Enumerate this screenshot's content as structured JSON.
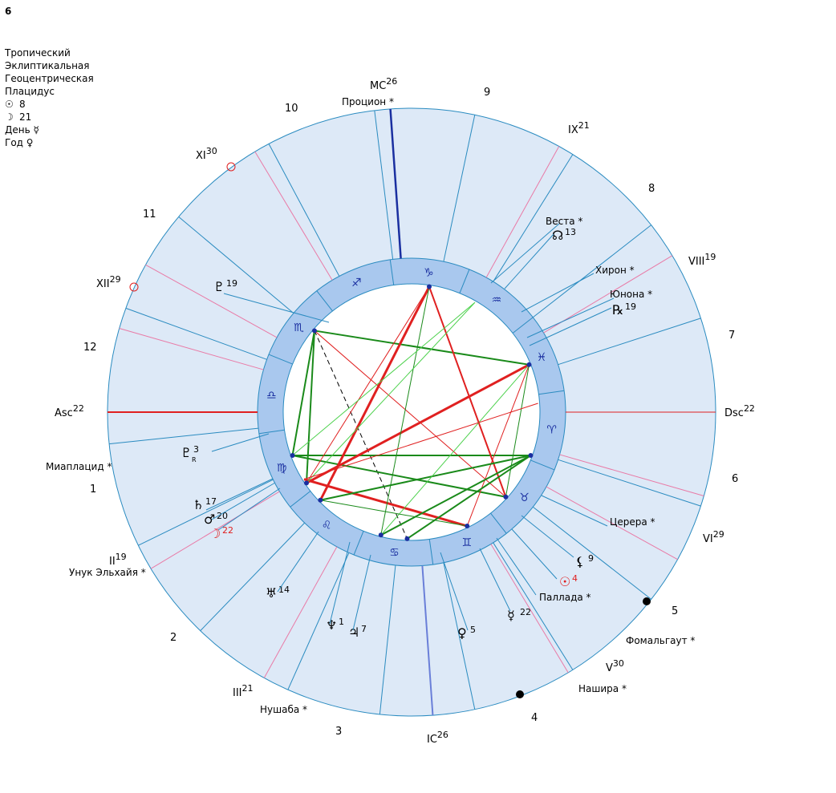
{
  "header": {
    "number": "6",
    "lines": [
      "Тропический",
      "Эклиптикальная",
      "Геоцентрическая",
      "Плацидус"
    ],
    "sun_value": "8",
    "moon_value": "21",
    "day_label": "День ☿",
    "year_label": "Год ♀"
  },
  "colors": {
    "house_fill": "#dde9f7",
    "house_line": "#2a8bc0",
    "zodiac_ring": "#a9c8ee",
    "aspect_red": "#e02020",
    "aspect_green": "#1a8a1a",
    "aspect_light_green": "#4cd14c",
    "axis_red": "#e02020",
    "axis_blue": "#1a2fa0"
  },
  "angles": {
    "asc": {
      "label": "Asc",
      "deg": "22"
    },
    "dsc": {
      "label": "Dsc",
      "deg": "22"
    },
    "mc": {
      "label": "MC",
      "deg": "26"
    },
    "ic": {
      "label": "IC",
      "deg": "26"
    }
  },
  "cusps": [
    {
      "label": "II",
      "deg": "19"
    },
    {
      "label": "III",
      "deg": "21"
    },
    {
      "label": "V",
      "deg": "30"
    },
    {
      "label": "VI",
      "deg": "29"
    },
    {
      "label": "VIII",
      "deg": "19"
    },
    {
      "label": "IX",
      "deg": "21"
    },
    {
      "label": "XI",
      "deg": "30"
    },
    {
      "label": "XII",
      "deg": "29"
    }
  ],
  "house_numbers": [
    "1",
    "2",
    "3",
    "4",
    "5",
    "6",
    "7",
    "8",
    "9",
    "10",
    "11",
    "12"
  ],
  "zodiac_signs": [
    "♈",
    "♉",
    "♊",
    "♋",
    "♌",
    "♍",
    "♎",
    "♏",
    "♐",
    "♑",
    "♒",
    "♓"
  ],
  "planets": [
    {
      "name": "sun",
      "glyph": "☉",
      "deg": "4",
      "color": "#e02020"
    },
    {
      "name": "moon",
      "glyph": "☽",
      "deg": "22",
      "color": "#e02020"
    },
    {
      "name": "mercury",
      "glyph": "☿",
      "deg": "22",
      "color": "#000000"
    },
    {
      "name": "venus",
      "glyph": "♀",
      "deg": "5",
      "color": "#000000"
    },
    {
      "name": "mars",
      "glyph": "♂",
      "deg": "20",
      "color": "#000000"
    },
    {
      "name": "jupiter",
      "glyph": "♃",
      "deg": "7",
      "color": "#000000"
    },
    {
      "name": "saturn",
      "glyph": "♄",
      "deg": "17",
      "color": "#000000"
    },
    {
      "name": "uranus",
      "glyph": "♅",
      "deg": "14",
      "color": "#000000"
    },
    {
      "name": "neptune",
      "glyph": "♆",
      "deg": "1",
      "color": "#000000"
    },
    {
      "name": "pluto",
      "glyph": "♇",
      "deg": "3",
      "color": "#000000",
      "retro": "R"
    },
    {
      "name": "north-node",
      "glyph": "☊",
      "deg": "13",
      "color": "#000000"
    },
    {
      "name": "lilith",
      "glyph": "⚸",
      "deg": "9",
      "color": "#000000"
    },
    {
      "name": "selena",
      "glyph": "♇",
      "deg": "19",
      "color": "#000000"
    },
    {
      "name": "retro-point",
      "glyph": "℞",
      "deg": "19",
      "color": "#000000"
    }
  ],
  "stars_and_asteroids": [
    "Процион",
    "Веста",
    "Хирон",
    "Юнона",
    "Церера",
    "Паллада",
    "Фомальгаут",
    "Нашира",
    "Нушаба",
    "Унук Эльхайя",
    "Миаплацид"
  ],
  "aspect_glyphs": {
    "trine": "△",
    "square": "□",
    "sextile": "✶",
    "semisextile": "⚺"
  }
}
